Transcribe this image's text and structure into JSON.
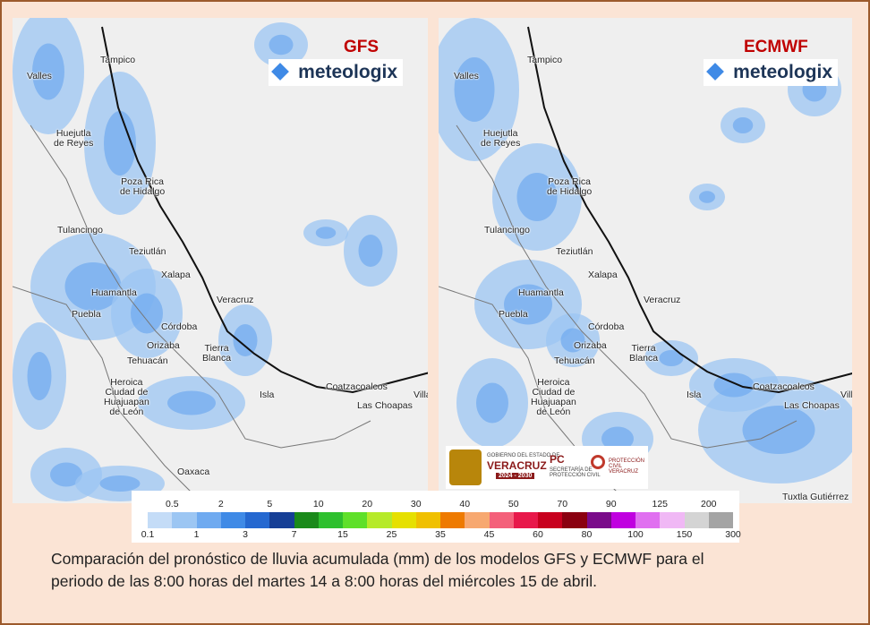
{
  "panels": [
    {
      "model": "GFS",
      "brand": "meteologix",
      "cities": [
        "Tampico",
        "Valles",
        "Huejutla\nde Reyes",
        "Poza Rica\nde Hidalgo",
        "Tulancingo",
        "Teziutlán",
        "Xalapa",
        "Huamantla",
        "Puebla",
        "Veracruz",
        "Córdoba",
        "Orizaba",
        "Tehuacán",
        "Tierra\nBlanca",
        "Heroica\nCiudad de\nHuajuapan\nde León",
        "Isla",
        "Coatzacoalcos",
        "Las Choapas",
        "Oaxaca",
        "Villa"
      ]
    },
    {
      "model": "ECMWF",
      "brand": "meteologix",
      "cities": [
        "Tampico",
        "Valles",
        "Huejutla\nde Reyes",
        "Poza Rica\nde Hidalgo",
        "Tulancingo",
        "Teziutlán",
        "Xalapa",
        "Huamantla",
        "Puebla",
        "Veracruz",
        "Córdoba",
        "Orizaba",
        "Tehuacán",
        "Tierra\nBlanca",
        "Heroica\nCiudad de\nHuajuapan\nde León",
        "Isla",
        "Coatzacoalcos",
        "Las Choapas",
        "Tuxtla Gutiérrez",
        "Villa"
      ],
      "logo": {
        "gov": "GOBIERNO DEL ESTADO DE",
        "state": "VERACRUZ",
        "years": "2024 - 2030",
        "pc": "PC",
        "pc_sub": "SECRETARÍA DE\nPROTECCIÓN CIVIL",
        "pc2": "PROTECCIÓN CIVIL\nVERACRUZ"
      }
    }
  ],
  "legend": {
    "top_labels": [
      0.5,
      2,
      5,
      10,
      20,
      30,
      40,
      50,
      70,
      90,
      125,
      200
    ],
    "bottom_labels": [
      0.1,
      1,
      3,
      7,
      15,
      25,
      35,
      45,
      60,
      80,
      100,
      150,
      300
    ],
    "colors": [
      "#c4dcf7",
      "#9cc6f3",
      "#6faaf0",
      "#3f8ae6",
      "#2568d0",
      "#163f96",
      "#1a8a1a",
      "#2ec02e",
      "#5fe02a",
      "#b6ea2a",
      "#e6e000",
      "#f0c000",
      "#ee7a00",
      "#f7a870",
      "#f4607a",
      "#e8184a",
      "#c8001e",
      "#8a0010",
      "#7a0a8a",
      "#c000e0",
      "#e070f0",
      "#f0b8f5",
      "#d4d4d4",
      "#a4a4a4"
    ]
  },
  "caption": "Comparación del pronóstico de lluvia acumulada (mm) de los modelos GFS y ECMWF para el\nperiodo de las 8:00 horas del martes 14 a 8:00 horas del miércoles 15 de abril."
}
